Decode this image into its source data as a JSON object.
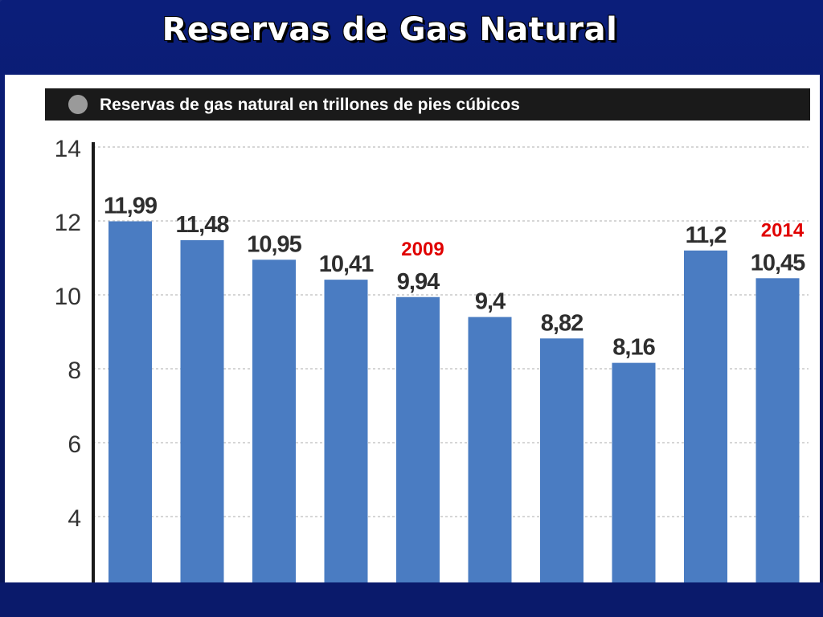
{
  "slide": {
    "title": "Reservas de Gas Natural"
  },
  "colors": {
    "background": "#0a1a6b",
    "bar": "#4a7cc2",
    "header_bar": "#1a1a1a",
    "annotation": "#e00000"
  },
  "chart_data": {
    "type": "bar",
    "title": "Reservas de gas natural en trillones de pies cúbicos",
    "categories": [
      "",
      "",
      "",
      "",
      "",
      "",
      "",
      "",
      "",
      ""
    ],
    "values": [
      11.99,
      11.48,
      10.95,
      10.41,
      9.94,
      9.4,
      8.82,
      8.16,
      11.2,
      10.45
    ],
    "value_labels": [
      "11,99",
      "11,48",
      "10,95",
      "10,41",
      "9,94",
      "9,4",
      "8,82",
      "8,16",
      "11,2",
      "10,45"
    ],
    "annotations": [
      {
        "bar_index": 4,
        "text": "2009"
      },
      {
        "bar_index": 9,
        "text": "2014"
      }
    ],
    "yticks": [
      "4",
      "6",
      "8",
      "10",
      "12",
      "14"
    ],
    "ytick_values": [
      4,
      6,
      8,
      10,
      12,
      14
    ],
    "ylim": [
      2,
      14
    ],
    "grid": true,
    "xlabel": "",
    "ylabel": ""
  }
}
